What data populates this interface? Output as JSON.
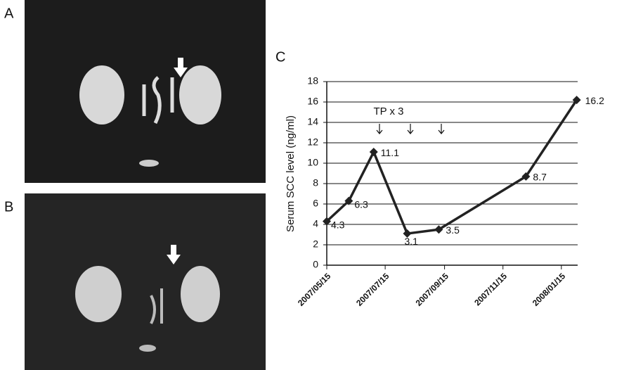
{
  "panels": [
    "A",
    "B",
    "C"
  ],
  "chart_data": {
    "type": "line",
    "ylabel": "Serum SCC level (ng/ml)",
    "annotation": "TP x 3",
    "x": [
      "2007/05/15",
      "2007/06/07",
      "2007/07/03",
      "2007/08/07",
      "2007/09/09",
      "2007/12/09",
      "2008/01/31"
    ],
    "values": [
      4.3,
      6.3,
      11.1,
      3.1,
      3.5,
      8.7,
      16.2
    ],
    "color": "#222222",
    "xlim": [
      "2007/05/15",
      "2008/02/01"
    ],
    "xticks": [
      "2007/05/15",
      "2007/07/15",
      "2007/09/15",
      "2007/11/15",
      "2008/01/15"
    ],
    "ylim": [
      0,
      18
    ],
    "yticks": [
      0,
      2,
      4,
      6,
      8,
      10,
      12,
      14,
      16,
      18
    ],
    "grid": true
  }
}
